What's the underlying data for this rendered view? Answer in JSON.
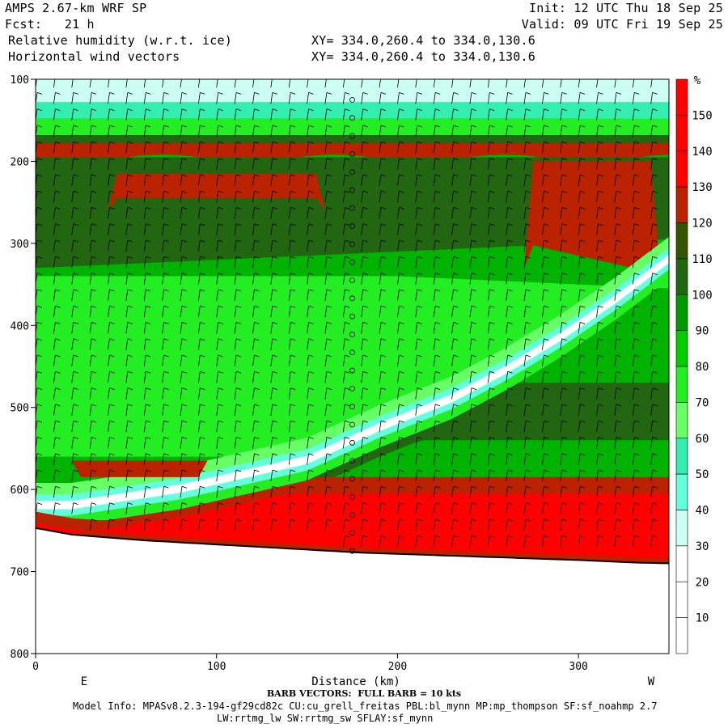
{
  "header": {
    "model_title": "AMPS 2.67-km WRF SP",
    "init": "Init: 12 UTC Thu 18 Sep 25",
    "forecast": "Fcst:   21 h",
    "valid": "Valid: 09 UTC Fri 19 Sep 25",
    "field1": "Relative humidity (w.r.t. ice)",
    "xy1": "XY= 334.0,260.4 to 334.0,130.6",
    "field2": "Horizontal wind vectors",
    "xy2": "XY= 334.0,260.4 to 334.0,130.6"
  },
  "chart_data": {
    "type": "heatmap",
    "xlabel": "Distance (km)",
    "ylabel": "",
    "xlim": [
      0,
      350
    ],
    "ylim": [
      100,
      800
    ],
    "x_ticks": [
      0,
      100,
      200,
      300
    ],
    "y_ticks": [
      100,
      200,
      300,
      400,
      500,
      600,
      700,
      800
    ],
    "y_inverted": true,
    "orientation_labels": {
      "left": "E",
      "right": "W"
    },
    "colorbar": {
      "unit": "%",
      "levels": [
        10,
        20,
        30,
        40,
        50,
        60,
        70,
        80,
        90,
        100,
        110,
        120,
        130,
        140,
        150
      ],
      "colors": [
        "#ffffff",
        "#ffffff",
        "#ffffff",
        "#ccfff4",
        "#66ffdd",
        "#33eeb0",
        "#66ff66",
        "#22ee22",
        "#00cc00",
        "#009900",
        "#226611",
        "#335500",
        "#bb2200",
        "#ff0000",
        "#ff0000",
        "#ff0000"
      ]
    },
    "terrain_surface_pressure": {
      "x": [
        0,
        20,
        60,
        100,
        140,
        180,
        220,
        260,
        300,
        330,
        350
      ],
      "p": [
        647,
        655,
        662,
        667,
        672,
        677,
        680,
        683,
        686,
        689,
        690
      ]
    },
    "dry_layer_axis": {
      "x": [
        20,
        80,
        150,
        190,
        230,
        260,
        290,
        320,
        350
      ],
      "p": [
        620,
        600,
        565,
        525,
        490,
        455,
        415,
        370,
        320
      ]
    }
  },
  "footer": {
    "barb_note": "BARB VECTORS:  FULL BARB = 10 kts",
    "model_info": "Model Info: MPASv8.2.3-194-gf29cd82c CU:cu_grell_freitas PBL:bl_mynn MP:mp_thompson SF:sf_noahmp 2.7",
    "model_info2": "LW:rrtmg_lw SW:rrtmg_sw SFLAY:sf_mynn"
  }
}
